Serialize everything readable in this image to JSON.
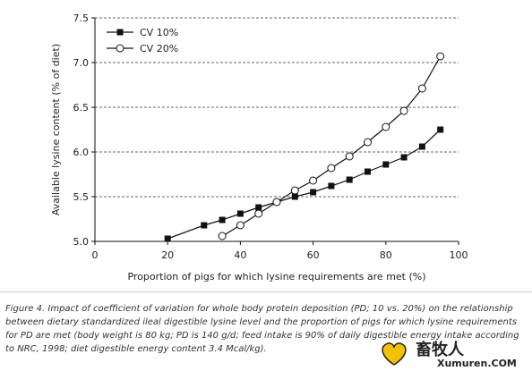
{
  "chart_data": {
    "type": "line",
    "xlabel": "Proportion of pigs for which lysine requirements are met (%)",
    "ylabel": "Available lysine content (% of diet)",
    "xlim": [
      0,
      100
    ],
    "ylim": [
      5.0,
      7.5
    ],
    "xticks": [
      "0",
      "20",
      "40",
      "60",
      "80",
      "100"
    ],
    "yticks": [
      "5.0",
      "5.5",
      "6.0",
      "6.5",
      "7.0",
      "7.5"
    ],
    "grid": "horizontal dashed",
    "legend_position": "top-left",
    "series": [
      {
        "name": "CV 10%",
        "marker": "filled-square",
        "color": "#111111",
        "x": [
          20,
          30,
          35,
          40,
          45,
          50,
          55,
          60,
          65,
          70,
          75,
          80,
          85,
          90,
          95
        ],
        "y": [
          5.03,
          5.18,
          5.24,
          5.31,
          5.38,
          5.44,
          5.5,
          5.55,
          5.62,
          5.69,
          5.78,
          5.86,
          5.94,
          6.06,
          6.25
        ]
      },
      {
        "name": "CV 20%",
        "marker": "open-circle",
        "color": "#111111",
        "x": [
          35,
          40,
          45,
          50,
          55,
          60,
          65,
          70,
          75,
          80,
          85,
          90,
          95
        ],
        "y": [
          5.06,
          5.18,
          5.31,
          5.44,
          5.57,
          5.68,
          5.82,
          5.95,
          6.11,
          6.28,
          6.46,
          6.71,
          7.07
        ]
      }
    ]
  },
  "caption": {
    "text": "Figure 4. Impact of coefficient of variation for whole body protein deposition (PD; 10 vs. 20%) on the relationship between dietary standardized ileal digestible lysine level and the proportion of pigs for which lysine requirements for PD are met (body weight is 80 kg; PD is 140 g/d; feed intake is 90% of daily digestible energy intake according to NRC, 1998; diet digestible energy content 3.4 Mcal/kg)."
  },
  "watermark": {
    "text": "畜牧人",
    "url": "Xumuren.COM"
  }
}
